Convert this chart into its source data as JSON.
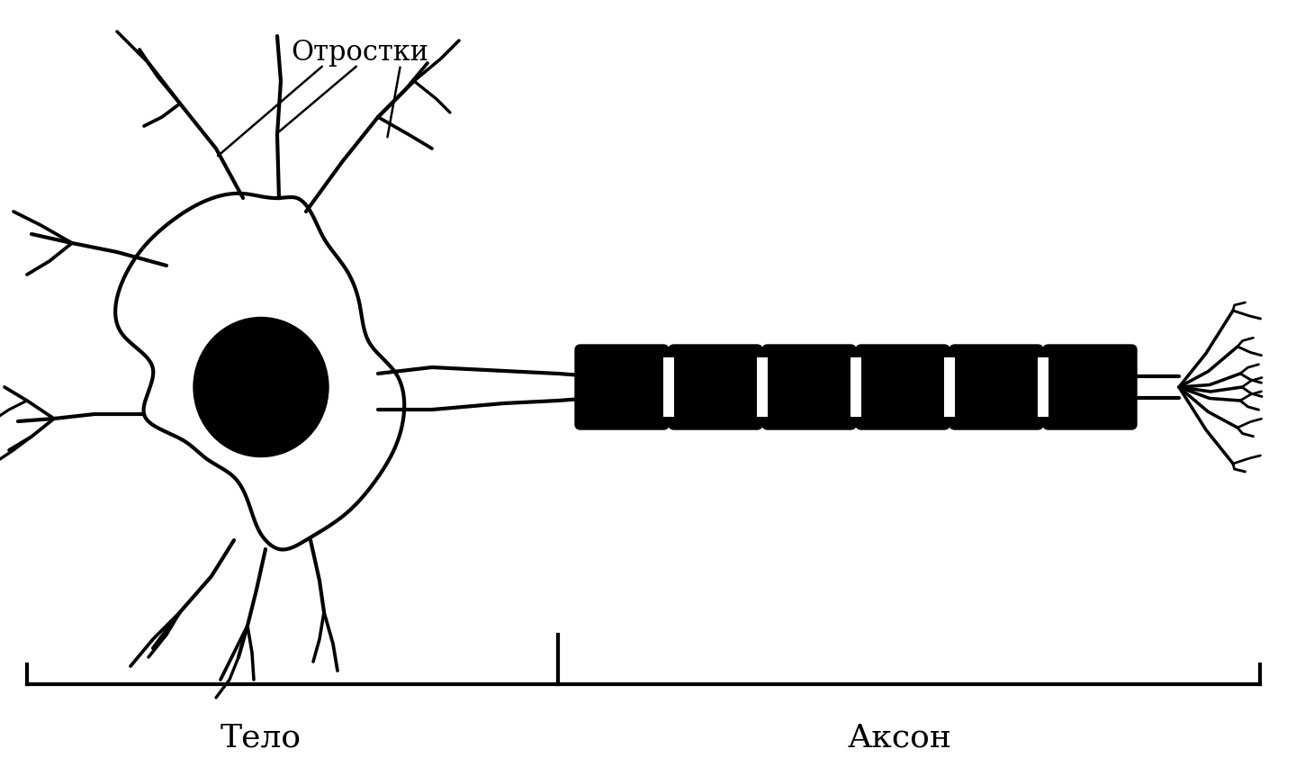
{
  "bg_color": "#ffffff",
  "line_color": "#000000",
  "label_otrostki": "Отростки",
  "label_telo": "Тело",
  "label_akson": "Аксон",
  "label_fontsize": 26,
  "annotation_fontsize": 22,
  "fig_width": 14.4,
  "fig_height": 8.52
}
